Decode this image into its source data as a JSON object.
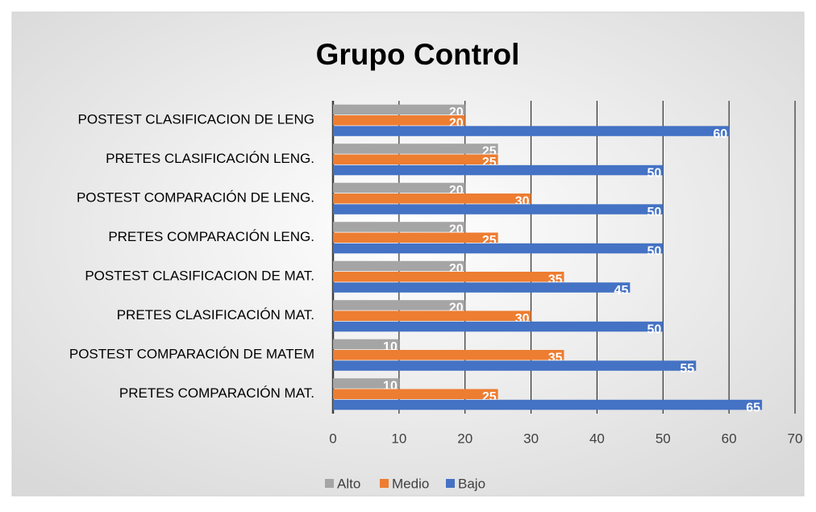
{
  "chart_data": {
    "type": "hbar",
    "title": "Grupo Control",
    "categories": [
      "POSTEST CLASIFICACION DE LENG",
      "PRETES CLASIFICACIÓN LENG.",
      "POSTEST COMPARACIÓN DE LENG.",
      "PRETES COMPARACIÓN LENG.",
      "POSTEST CLASIFICACION DE MAT.",
      "PRETES CLASIFICACIÓN MAT.",
      "POSTEST COMPARACIÓN DE MATEM",
      "PRETES COMPARACIÓN MAT."
    ],
    "series": [
      {
        "name": "Alto",
        "color": "#a5a5a5",
        "values": [
          20,
          25,
          20,
          20,
          20,
          20,
          10,
          10
        ]
      },
      {
        "name": "Medio",
        "color": "#ed7d31",
        "values": [
          20,
          25,
          30,
          25,
          35,
          30,
          35,
          25
        ]
      },
      {
        "name": "Bajo",
        "color": "#4472c4",
        "values": [
          60,
          50,
          50,
          50,
          45,
          50,
          55,
          65
        ]
      }
    ],
    "xlim": [
      0,
      70
    ],
    "xticks": [
      0,
      10,
      20,
      30,
      40,
      50,
      60,
      70
    ],
    "grid": true,
    "legend": "bottom"
  }
}
